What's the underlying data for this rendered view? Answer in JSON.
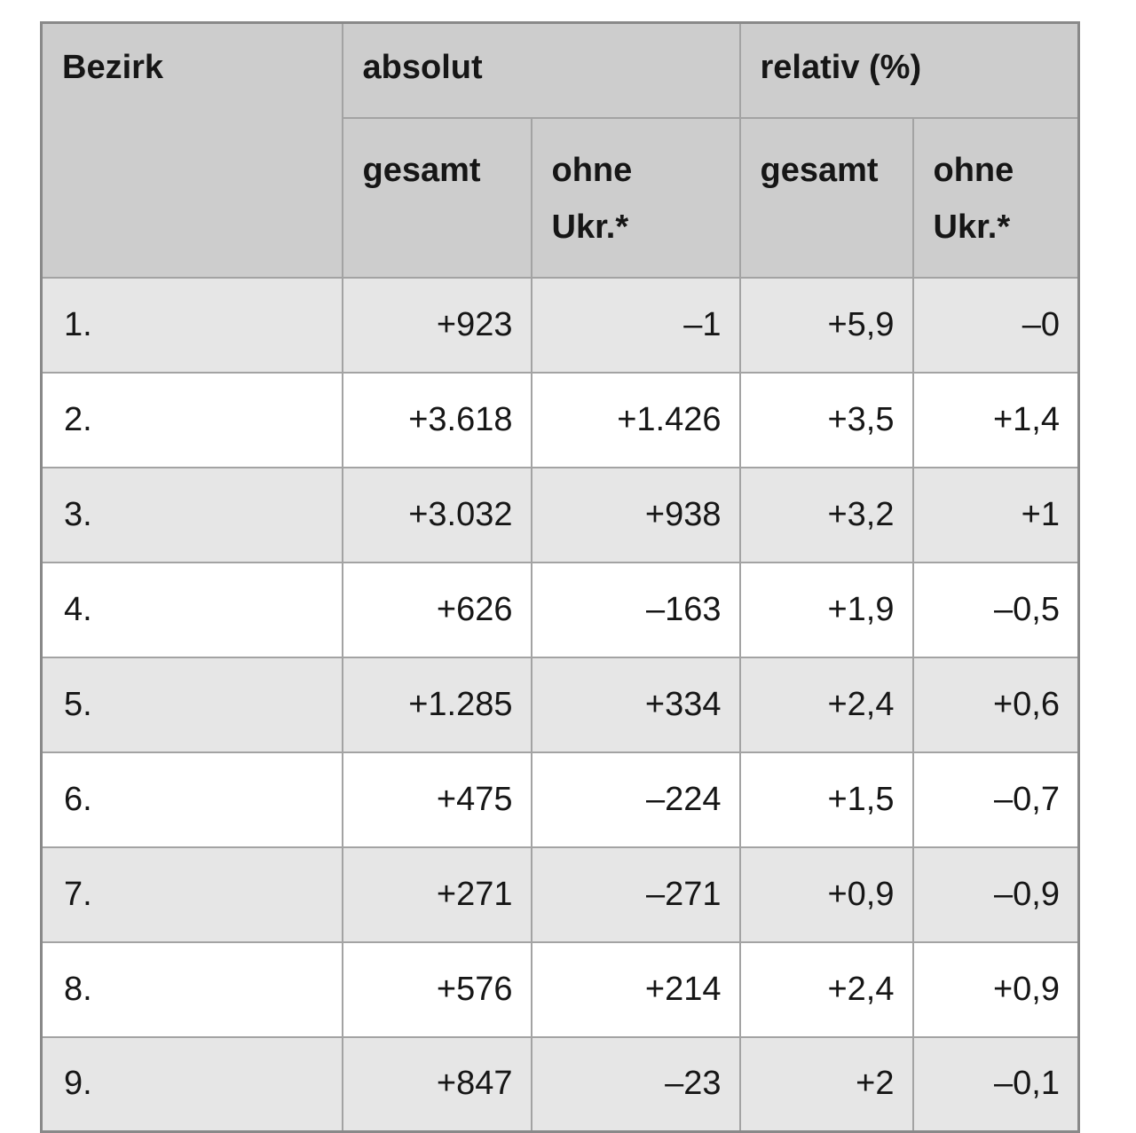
{
  "table": {
    "header": {
      "bezirk": "Bezirk",
      "group_absolut": "absolut",
      "group_relativ": "relativ (%)",
      "sub_gesamt": "gesamt",
      "sub_ohne_line1": "ohne",
      "sub_ohne_line2": "Ukr.*"
    },
    "rows": [
      {
        "bezirk": "1.",
        "abs_gesamt": "+923",
        "abs_ohne": "–1",
        "rel_gesamt": "+5,9",
        "rel_ohne": "–0"
      },
      {
        "bezirk": "2.",
        "abs_gesamt": "+3.618",
        "abs_ohne": "+1.426",
        "rel_gesamt": "+3,5",
        "rel_ohne": "+1,4"
      },
      {
        "bezirk": "3.",
        "abs_gesamt": "+3.032",
        "abs_ohne": "+938",
        "rel_gesamt": "+3,2",
        "rel_ohne": "+1"
      },
      {
        "bezirk": "4.",
        "abs_gesamt": "+626",
        "abs_ohne": "–163",
        "rel_gesamt": "+1,9",
        "rel_ohne": "–0,5"
      },
      {
        "bezirk": "5.",
        "abs_gesamt": "+1.285",
        "abs_ohne": "+334",
        "rel_gesamt": "+2,4",
        "rel_ohne": "+0,6"
      },
      {
        "bezirk": "6.",
        "abs_gesamt": "+475",
        "abs_ohne": "–224",
        "rel_gesamt": "+1,5",
        "rel_ohne": "–0,7"
      },
      {
        "bezirk": "7.",
        "abs_gesamt": "+271",
        "abs_ohne": "–271",
        "rel_gesamt": "+0,9",
        "rel_ohne": "–0,9"
      },
      {
        "bezirk": "8.",
        "abs_gesamt": "+576",
        "abs_ohne": "+214",
        "rel_gesamt": "+2,4",
        "rel_ohne": "+0,9"
      },
      {
        "bezirk": "9.",
        "abs_gesamt": "+847",
        "abs_ohne": "–23",
        "rel_gesamt": "+2",
        "rel_ohne": "–0,1"
      }
    ],
    "colors": {
      "header_bg": "#cdcdcd",
      "row_odd_bg": "#e6e6e6",
      "row_even_bg": "#ffffff",
      "border_inner": "#a3a3a3",
      "border_outer": "#898989",
      "text": "#161616"
    }
  },
  "chart_data": {
    "type": "table",
    "title": "",
    "columns": [
      "Bezirk",
      "absolut gesamt",
      "absolut ohne Ukr.*",
      "relativ (%) gesamt",
      "relativ (%) ohne Ukr.*"
    ],
    "rows": [
      [
        "1.",
        923,
        -1,
        5.9,
        -0.0
      ],
      [
        "2.",
        3618,
        1426,
        3.5,
        1.4
      ],
      [
        "3.",
        3032,
        938,
        3.2,
        1.0
      ],
      [
        "4.",
        626,
        -163,
        1.9,
        -0.5
      ],
      [
        "5.",
        1285,
        334,
        2.4,
        0.6
      ],
      [
        "6.",
        475,
        -224,
        1.5,
        -0.7
      ],
      [
        "7.",
        271,
        -271,
        0.9,
        -0.9
      ],
      [
        "8.",
        576,
        214,
        2.4,
        0.9
      ],
      [
        "9.",
        847,
        -23,
        2.0,
        -0.1
      ]
    ],
    "notes": "German number formatting: thousands separator '.', decimal comma; '*' refers to footnote 'ohne Ukr.' (without Ukrainians); table cropped at bottom edge of screenshot"
  }
}
